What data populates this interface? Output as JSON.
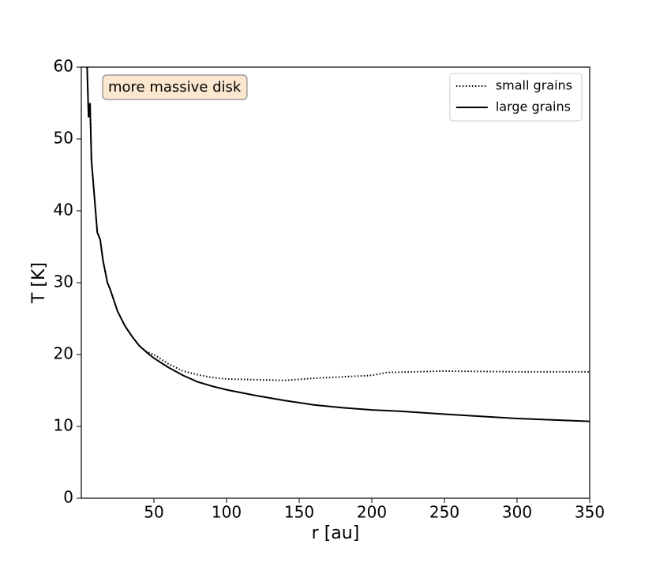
{
  "chart_data": {
    "type": "line",
    "xlabel": "r [au]",
    "ylabel": "T [K]",
    "annotation": "more massive disk",
    "xlim": [
      0,
      350
    ],
    "ylim": [
      0,
      60
    ],
    "xticks": [
      50,
      100,
      150,
      200,
      250,
      300,
      350
    ],
    "yticks": [
      0,
      10,
      20,
      30,
      40,
      50,
      60
    ],
    "legend": "upper right",
    "series": [
      {
        "name": "small grains",
        "color": "#000000",
        "linestyle": "dotted",
        "x": [
          4,
          5,
          6,
          7,
          9,
          11,
          13,
          15,
          18,
          20,
          25,
          30,
          35,
          40,
          45,
          50,
          60,
          70,
          80,
          90,
          100,
          120,
          140,
          160,
          180,
          200,
          210,
          250,
          300,
          350
        ],
        "values": [
          60,
          53,
          55,
          47,
          42,
          37,
          36,
          33,
          30,
          29,
          26,
          24,
          22.5,
          21.2,
          20.4,
          20,
          18.7,
          17.7,
          17.2,
          16.8,
          16.6,
          16.5,
          16.4,
          16.7,
          16.9,
          17.1,
          17.5,
          17.7,
          17.6,
          17.6
        ]
      },
      {
        "name": "large grains",
        "color": "#000000",
        "linestyle": "solid",
        "x": [
          4,
          5,
          6,
          7,
          9,
          11,
          13,
          15,
          18,
          20,
          25,
          30,
          35,
          40,
          45,
          50,
          60,
          70,
          80,
          90,
          100,
          120,
          140,
          160,
          180,
          200,
          220,
          250,
          300,
          350
        ],
        "values": [
          60,
          53,
          55,
          47,
          42,
          37,
          36,
          33,
          30,
          29,
          26,
          24,
          22.5,
          21.2,
          20.3,
          19.5,
          18.2,
          17.1,
          16.2,
          15.6,
          15.1,
          14.3,
          13.6,
          13.0,
          12.6,
          12.3,
          12.1,
          11.7,
          11.1,
          10.7
        ]
      }
    ]
  }
}
